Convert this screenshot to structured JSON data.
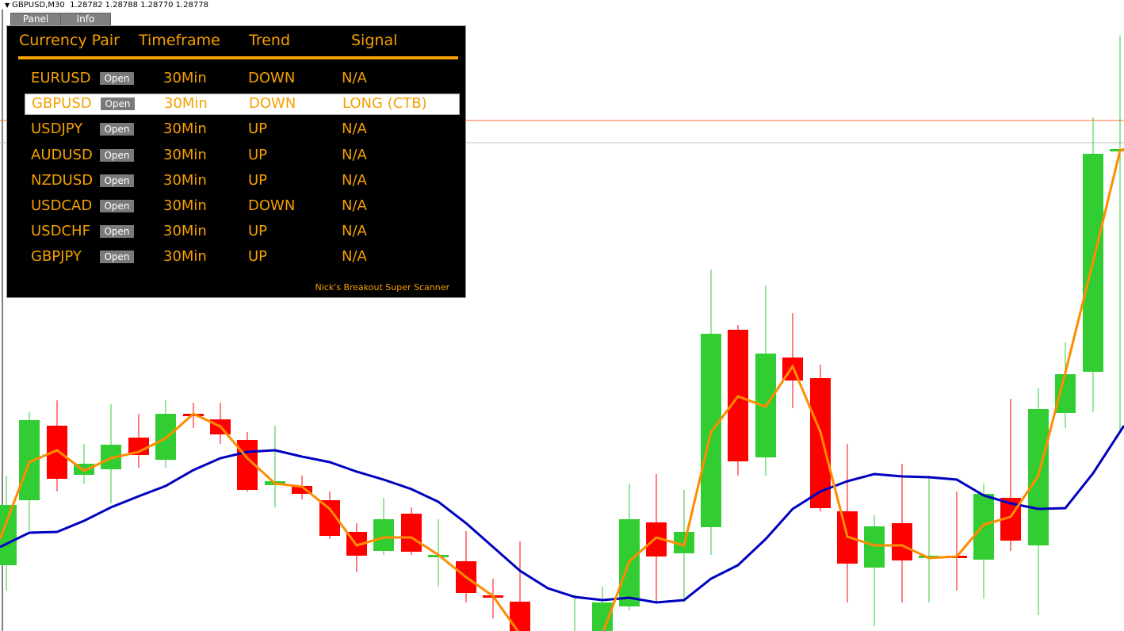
{
  "chart_title": {
    "symbol": "GBPUSD,M30",
    "ohlc": "1.28782 1.28788 1.28770 1.28778"
  },
  "tabs": [
    {
      "label": "Panel"
    },
    {
      "label": "Info"
    }
  ],
  "panel": {
    "headers": {
      "pair": "Currency Pair",
      "timeframe": "Timeframe",
      "trend": "Trend",
      "signal": "Signal"
    },
    "open_label": "Open",
    "rows": [
      {
        "pair": "EURUSD",
        "timeframe": "30Min",
        "trend": "DOWN",
        "signal": "N/A"
      },
      {
        "pair": "GBPUSD",
        "timeframe": "30Min",
        "trend": "DOWN",
        "signal": "LONG (CTB)",
        "selected": true
      },
      {
        "pair": "USDJPY",
        "timeframe": "30Min",
        "trend": "UP",
        "signal": "N/A"
      },
      {
        "pair": "AUDUSD",
        "timeframe": "30Min",
        "trend": "UP",
        "signal": "N/A"
      },
      {
        "pair": "NZDUSD",
        "timeframe": "30Min",
        "trend": "UP",
        "signal": "N/A"
      },
      {
        "pair": "USDCAD",
        "timeframe": "30Min",
        "trend": "DOWN",
        "signal": "N/A"
      },
      {
        "pair": "USDCHF",
        "timeframe": "30Min",
        "trend": "UP",
        "signal": "N/A"
      },
      {
        "pair": "GBPJPY",
        "timeframe": "30Min",
        "trend": "UP",
        "signal": "N/A"
      }
    ],
    "footer": "Nick's Breakout Super Scanner"
  },
  "colors": {
    "accent": "#f5a000",
    "bull": "#32cd32",
    "bear": "#ff0000",
    "ma_fast": "#ff8c00",
    "ma_slow": "#0000c0",
    "panel_bg": "#000000"
  }
}
